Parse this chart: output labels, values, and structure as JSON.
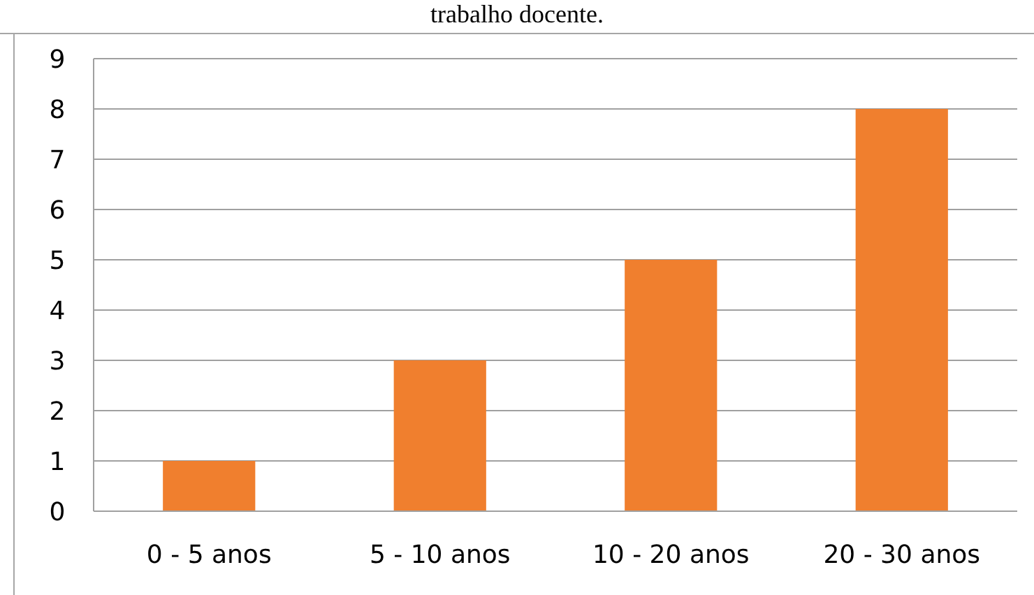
{
  "chart_data": {
    "type": "bar",
    "title": "trabalho docente.",
    "categories": [
      "0 - 5 anos",
      "5 - 10 anos",
      "10 - 20 anos",
      "20 - 30 anos"
    ],
    "values": [
      1,
      3,
      5,
      8
    ],
    "color": "#f07f2e",
    "ylim": [
      0,
      9
    ],
    "yticks": [
      0,
      1,
      2,
      3,
      4,
      5,
      6,
      7,
      8,
      9
    ],
    "grid": "y"
  }
}
